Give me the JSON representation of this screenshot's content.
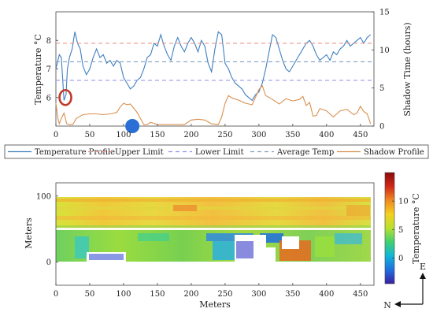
{
  "chart_data": [
    {
      "type": "line",
      "xlim": [
        0,
        470
      ],
      "ylim": [
        5,
        9
      ],
      "y2lim": [
        0,
        15
      ],
      "ylabel": "Temperature °C",
      "y2label": "Shadow Time (hours)",
      "xticks": [
        "0",
        "50",
        "100",
        "150",
        "200",
        "250",
        "300",
        "350",
        "400",
        "450"
      ],
      "yticks": [
        "6",
        "7",
        "8"
      ],
      "y2ticks": [
        "0",
        "5",
        "10",
        "15"
      ],
      "grid": false,
      "legend_position": "bottom",
      "series": [
        {
          "name": "Temperature Profile",
          "axis": "left",
          "color": "#3f7fbf",
          "dash": "",
          "x": [
            0,
            5,
            8,
            12,
            15,
            17,
            20,
            24,
            28,
            32,
            36,
            40,
            45,
            50,
            55,
            60,
            65,
            70,
            75,
            80,
            85,
            90,
            95,
            100,
            105,
            110,
            115,
            120,
            125,
            130,
            135,
            140,
            145,
            150,
            155,
            160,
            165,
            170,
            175,
            180,
            185,
            190,
            195,
            200,
            205,
            210,
            215,
            220,
            225,
            230,
            235,
            240,
            245,
            250,
            255,
            260,
            265,
            270,
            275,
            280,
            285,
            290,
            295,
            300,
            305,
            310,
            315,
            320,
            325,
            330,
            335,
            340,
            345,
            350,
            355,
            360,
            365,
            370,
            375,
            380,
            385,
            390,
            395,
            400,
            405,
            410,
            415,
            420,
            425,
            430,
            435,
            440,
            445,
            450,
            455,
            460,
            465
          ],
          "values": [
            7.0,
            7.5,
            7.4,
            5.9,
            6.1,
            7.0,
            7.4,
            7.7,
            8.3,
            7.9,
            7.7,
            7.1,
            6.8,
            7.0,
            7.4,
            7.7,
            7.4,
            7.5,
            7.2,
            7.3,
            7.1,
            7.3,
            7.2,
            6.7,
            6.5,
            6.3,
            6.4,
            6.6,
            6.7,
            7.0,
            7.4,
            7.5,
            7.9,
            7.8,
            8.2,
            7.8,
            7.5,
            7.3,
            7.8,
            8.1,
            7.8,
            7.6,
            7.9,
            8.1,
            7.9,
            7.6,
            8.0,
            7.8,
            7.2,
            6.9,
            7.7,
            8.3,
            8.2,
            7.2,
            7.0,
            6.7,
            6.5,
            6.4,
            6.3,
            6.1,
            6.0,
            5.9,
            6.1,
            6.2,
            6.5,
            7.0,
            7.6,
            8.2,
            8.1,
            7.7,
            7.3,
            7.0,
            6.9,
            7.1,
            7.3,
            7.5,
            7.7,
            7.9,
            8.0,
            7.8,
            7.5,
            7.3,
            7.4,
            7.5,
            7.3,
            7.6,
            7.5,
            7.7,
            7.8,
            8.0,
            7.8,
            7.9,
            8.0,
            8.1,
            7.9,
            8.1,
            8.2
          ]
        },
        {
          "name": "Upper Limit",
          "axis": "left",
          "color": "#e8958c",
          "dash": "5 4",
          "x": [
            0,
            470
          ],
          "values": [
            7.9,
            7.9
          ]
        },
        {
          "name": "Lower Limit",
          "axis": "left",
          "color": "#8f8fe8",
          "dash": "5 4",
          "x": [
            0,
            470
          ],
          "values": [
            6.6,
            6.6
          ]
        },
        {
          "name": "Average Temp",
          "axis": "left",
          "color": "#7f9fbf",
          "dash": "5 4",
          "x": [
            0,
            470
          ],
          "values": [
            7.25,
            7.25
          ]
        },
        {
          "name": "Shadow Profile",
          "axis": "right",
          "color": "#d99050",
          "dash": "",
          "x": [
            0,
            3,
            5,
            8,
            12,
            16,
            20,
            25,
            30,
            40,
            50,
            60,
            70,
            80,
            90,
            95,
            100,
            105,
            110,
            120,
            130,
            135,
            140,
            150,
            155,
            160,
            165,
            170,
            180,
            190,
            200,
            210,
            220,
            230,
            240,
            245,
            250,
            255,
            260,
            270,
            280,
            290,
            300,
            305,
            310,
            320,
            330,
            340,
            350,
            360,
            365,
            370,
            375,
            380,
            385,
            390,
            400,
            410,
            420,
            430,
            440,
            445,
            450,
            455,
            460,
            465
          ],
          "values": [
            3.0,
            1.0,
            0.3,
            1.0,
            1.7,
            0.3,
            0.2,
            0.2,
            1.0,
            1.5,
            1.6,
            1.6,
            1.5,
            1.6,
            1.8,
            2.5,
            3.0,
            2.8,
            2.9,
            1.8,
            0.2,
            0.2,
            0.5,
            0.2,
            0.2,
            0.2,
            0.2,
            0.2,
            0.2,
            0.2,
            0.8,
            0.9,
            0.8,
            0.3,
            0.2,
            1.2,
            3.0,
            4.0,
            3.7,
            3.4,
            3.0,
            2.8,
            4.8,
            5.3,
            4.0,
            3.5,
            2.9,
            3.6,
            3.3,
            3.5,
            3.9,
            2.7,
            3.1,
            1.3,
            1.4,
            2.3,
            2.0,
            1.2,
            2.0,
            2.2,
            1.5,
            1.7,
            2.6,
            1.9,
            1.6,
            0.3
          ]
        }
      ],
      "annotations": [
        {
          "shape": "ring",
          "color": "#c0392b",
          "x": 14,
          "y": 6.0
        },
        {
          "shape": "dot",
          "color": "#2a6fd6",
          "x": 113,
          "y": 5.0
        }
      ]
    },
    {
      "type": "heatmap",
      "xlabel": "Meters",
      "ylabel": "Meters",
      "xlim": [
        0,
        470
      ],
      "ylim": [
        -35,
        120
      ],
      "xticks": [
        "0",
        "50",
        "100",
        "150",
        "200",
        "250",
        "300",
        "350",
        "400",
        "450"
      ],
      "yticks": [
        "0",
        "100"
      ],
      "colorbar_label": "Temperature °C",
      "colorbar_ticks": [
        "0",
        "5",
        "10"
      ],
      "colorbar_range": [
        -4.5,
        15
      ],
      "colormap": [
        "#3b1fa0",
        "#1f6fe0",
        "#10b5d8",
        "#3fd070",
        "#b8e030",
        "#f5d020",
        "#f08a20",
        "#d02818",
        "#8a0a0a"
      ]
    }
  ],
  "compass": {
    "up": "E",
    "right": "N"
  }
}
